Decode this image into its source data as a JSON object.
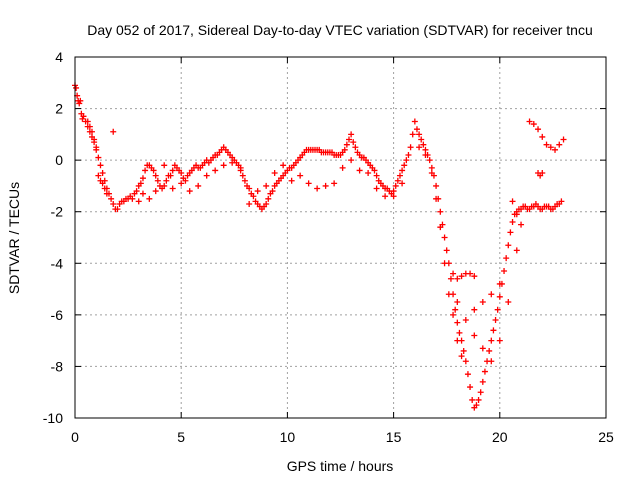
{
  "chart_data": {
    "type": "scatter",
    "title": "Day 052 of 2017, Sidereal Day-to-day VTEC variation (SDTVAR) for receiver tncu",
    "xlabel": "GPS time / hours",
    "ylabel": "SDTVAR / TECUs",
    "xlim": [
      0,
      25
    ],
    "ylim": [
      -10,
      4
    ],
    "xticks": [
      "0",
      "5",
      "10",
      "15",
      "20",
      "25"
    ],
    "yticks": [
      "-10",
      "-8",
      "-6",
      "-4",
      "-2",
      "0",
      "2",
      "4"
    ],
    "grid": true,
    "marker": "+",
    "color": "#ff0000",
    "series": [
      {
        "points": [
          [
            0.0,
            2.9
          ],
          [
            0.05,
            2.8
          ],
          [
            0.1,
            2.5
          ],
          [
            0.15,
            2.3
          ],
          [
            0.2,
            2.2
          ],
          [
            0.25,
            2.3
          ],
          [
            0.3,
            1.8
          ],
          [
            0.35,
            1.6
          ],
          [
            0.4,
            1.7
          ],
          [
            0.5,
            1.5
          ],
          [
            0.6,
            1.3
          ],
          [
            0.7,
            1.1
          ],
          [
            0.8,
            0.9
          ],
          [
            0.9,
            0.7
          ],
          [
            1.0,
            0.4
          ],
          [
            1.1,
            0.1
          ],
          [
            1.2,
            -0.2
          ],
          [
            1.3,
            -0.5
          ],
          [
            1.4,
            -0.8
          ],
          [
            1.5,
            -1.1
          ],
          [
            1.6,
            -1.3
          ],
          [
            1.7,
            -1.5
          ],
          [
            1.8,
            -1.7
          ],
          [
            1.9,
            -1.9
          ],
          [
            2.0,
            -1.9
          ],
          [
            2.1,
            -1.7
          ],
          [
            2.2,
            -1.6
          ],
          [
            2.3,
            -1.6
          ],
          [
            2.4,
            -1.5
          ],
          [
            2.5,
            -1.5
          ],
          [
            2.6,
            -1.4
          ],
          [
            2.7,
            -1.5
          ],
          [
            2.8,
            -1.3
          ],
          [
            2.9,
            -1.2
          ],
          [
            3.0,
            -1.0
          ],
          [
            3.1,
            -0.9
          ],
          [
            3.2,
            -0.7
          ],
          [
            3.3,
            -0.4
          ],
          [
            3.4,
            -0.2
          ],
          [
            3.5,
            -0.2
          ],
          [
            3.6,
            -0.3
          ],
          [
            3.7,
            -0.4
          ],
          [
            3.8,
            -0.6
          ],
          [
            3.9,
            -0.8
          ],
          [
            4.0,
            -1.0
          ],
          [
            4.1,
            -1.1
          ],
          [
            4.2,
            -1.0
          ],
          [
            4.3,
            -0.8
          ],
          [
            4.4,
            -0.6
          ],
          [
            4.5,
            -0.6
          ],
          [
            4.6,
            -0.4
          ],
          [
            4.7,
            -0.2
          ],
          [
            4.8,
            -0.3
          ],
          [
            4.9,
            -0.4
          ],
          [
            5.0,
            -0.5
          ],
          [
            5.1,
            -0.7
          ],
          [
            5.2,
            -0.8
          ],
          [
            5.3,
            -0.6
          ],
          [
            5.4,
            -0.5
          ],
          [
            5.5,
            -0.4
          ],
          [
            5.6,
            -0.3
          ],
          [
            5.7,
            -0.2
          ],
          [
            5.8,
            -0.3
          ],
          [
            5.9,
            -0.3
          ],
          [
            6.0,
            -0.2
          ],
          [
            6.1,
            -0.1
          ],
          [
            6.2,
            0.0
          ],
          [
            6.3,
            -0.1
          ],
          [
            6.4,
            0.0
          ],
          [
            6.5,
            0.1
          ],
          [
            6.6,
            0.2
          ],
          [
            6.7,
            0.2
          ],
          [
            6.8,
            0.3
          ],
          [
            6.9,
            0.4
          ],
          [
            7.0,
            0.5
          ],
          [
            7.1,
            0.4
          ],
          [
            7.2,
            0.3
          ],
          [
            7.3,
            0.2
          ],
          [
            7.4,
            0.1
          ],
          [
            7.5,
            0.0
          ],
          [
            7.6,
            -0.1
          ],
          [
            7.7,
            -0.2
          ],
          [
            7.8,
            -0.4
          ],
          [
            7.9,
            -0.6
          ],
          [
            8.0,
            -0.8
          ],
          [
            8.1,
            -1.0
          ],
          [
            8.2,
            -1.1
          ],
          [
            8.3,
            -1.3
          ],
          [
            8.4,
            -1.4
          ],
          [
            8.5,
            -1.6
          ],
          [
            8.6,
            -1.7
          ],
          [
            8.7,
            -1.8
          ],
          [
            8.8,
            -1.9
          ],
          [
            8.9,
            -1.8
          ],
          [
            9.0,
            -1.7
          ],
          [
            9.1,
            -1.5
          ],
          [
            9.2,
            -1.3
          ],
          [
            9.3,
            -1.2
          ],
          [
            9.4,
            -1.0
          ],
          [
            9.5,
            -0.9
          ],
          [
            9.6,
            -0.8
          ],
          [
            9.7,
            -0.7
          ],
          [
            9.8,
            -0.6
          ],
          [
            9.9,
            -0.5
          ],
          [
            10.0,
            -0.4
          ],
          [
            10.1,
            -0.3
          ],
          [
            10.2,
            -0.3
          ],
          [
            10.3,
            -0.2
          ],
          [
            10.4,
            -0.1
          ],
          [
            10.5,
            0.0
          ],
          [
            10.6,
            0.1
          ],
          [
            10.7,
            0.2
          ],
          [
            10.8,
            0.3
          ],
          [
            10.9,
            0.4
          ],
          [
            11.0,
            0.4
          ],
          [
            11.1,
            0.4
          ],
          [
            11.2,
            0.4
          ],
          [
            11.3,
            0.4
          ],
          [
            11.4,
            0.4
          ],
          [
            11.5,
            0.4
          ],
          [
            11.6,
            0.3
          ],
          [
            11.7,
            0.3
          ],
          [
            11.8,
            0.3
          ],
          [
            11.9,
            0.3
          ],
          [
            12.0,
            0.3
          ],
          [
            12.1,
            0.3
          ],
          [
            12.2,
            0.2
          ],
          [
            12.3,
            0.2
          ],
          [
            12.4,
            0.2
          ],
          [
            12.5,
            0.2
          ],
          [
            12.6,
            0.3
          ],
          [
            12.7,
            0.4
          ],
          [
            12.8,
            0.6
          ],
          [
            12.9,
            0.8
          ],
          [
            13.0,
            1.0
          ],
          [
            13.1,
            0.7
          ],
          [
            13.2,
            0.5
          ],
          [
            13.3,
            0.3
          ],
          [
            13.4,
            0.2
          ],
          [
            13.5,
            0.1
          ],
          [
            13.6,
            0.1
          ],
          [
            13.7,
            0.0
          ],
          [
            13.8,
            -0.1
          ],
          [
            13.9,
            -0.2
          ],
          [
            14.0,
            -0.3
          ],
          [
            14.1,
            -0.4
          ],
          [
            14.2,
            -0.6
          ],
          [
            14.3,
            -0.8
          ],
          [
            14.4,
            -0.9
          ],
          [
            14.5,
            -1.0
          ],
          [
            14.6,
            -1.1
          ],
          [
            14.7,
            -1.1
          ],
          [
            14.8,
            -1.2
          ],
          [
            14.9,
            -1.3
          ],
          [
            15.0,
            -1.2
          ],
          [
            15.1,
            -1.0
          ],
          [
            15.2,
            -0.8
          ],
          [
            15.3,
            -0.6
          ],
          [
            15.4,
            -0.4
          ],
          [
            15.5,
            -0.2
          ],
          [
            15.6,
            0.0
          ],
          [
            15.7,
            0.2
          ],
          [
            15.8,
            0.5
          ],
          [
            15.9,
            1.0
          ],
          [
            16.0,
            1.5
          ],
          [
            16.1,
            1.2
          ],
          [
            16.2,
            1.0
          ],
          [
            16.3,
            0.8
          ],
          [
            16.4,
            0.6
          ],
          [
            16.5,
            0.4
          ],
          [
            16.6,
            0.2
          ],
          [
            16.7,
            0.0
          ],
          [
            16.8,
            -0.3
          ],
          [
            16.9,
            -0.6
          ],
          [
            17.0,
            -1.0
          ],
          [
            17.1,
            -1.5
          ],
          [
            17.2,
            -2.0
          ],
          [
            17.3,
            -2.5
          ],
          [
            17.4,
            -3.0
          ],
          [
            17.5,
            -3.5
          ],
          [
            17.6,
            -4.0
          ],
          [
            17.7,
            -4.6
          ],
          [
            17.8,
            -5.2
          ],
          [
            17.9,
            -5.8
          ],
          [
            18.0,
            -6.3
          ],
          [
            18.1,
            -6.7
          ],
          [
            18.2,
            -7.0
          ],
          [
            18.3,
            -7.4
          ],
          [
            18.4,
            -7.8
          ],
          [
            18.5,
            -8.3
          ],
          [
            18.6,
            -8.8
          ],
          [
            18.7,
            -9.3
          ],
          [
            18.8,
            -9.6
          ],
          [
            18.9,
            -9.5
          ],
          [
            19.0,
            -9.3
          ],
          [
            19.1,
            -9.0
          ],
          [
            19.2,
            -8.6
          ],
          [
            19.3,
            -8.2
          ],
          [
            19.4,
            -7.8
          ],
          [
            19.5,
            -7.4
          ],
          [
            19.6,
            -7.0
          ],
          [
            19.7,
            -6.6
          ],
          [
            19.8,
            -6.2
          ],
          [
            19.9,
            -5.8
          ],
          [
            20.0,
            -5.3
          ],
          [
            20.1,
            -4.8
          ],
          [
            20.2,
            -4.3
          ],
          [
            20.3,
            -3.8
          ],
          [
            20.4,
            -3.3
          ],
          [
            20.5,
            -2.8
          ],
          [
            20.6,
            -2.4
          ],
          [
            20.7,
            -2.1
          ],
          [
            20.8,
            -2.0
          ],
          [
            20.9,
            -1.9
          ],
          [
            21.0,
            -1.9
          ],
          [
            21.1,
            -1.8
          ],
          [
            21.2,
            -1.8
          ],
          [
            21.3,
            -1.9
          ],
          [
            21.4,
            -1.9
          ],
          [
            21.5,
            -1.8
          ],
          [
            21.6,
            -1.8
          ],
          [
            21.7,
            -1.7
          ],
          [
            21.8,
            -1.8
          ],
          [
            21.9,
            -1.9
          ],
          [
            22.0,
            -1.9
          ],
          [
            22.1,
            -1.8
          ],
          [
            22.2,
            -1.8
          ],
          [
            22.3,
            -1.8
          ],
          [
            22.4,
            -1.9
          ],
          [
            22.5,
            -1.9
          ],
          [
            22.6,
            -1.8
          ],
          [
            22.7,
            -1.7
          ],
          [
            22.8,
            -1.7
          ],
          [
            22.9,
            -1.6
          ],
          [
            0.6,
            1.5
          ],
          [
            0.7,
            1.3
          ],
          [
            0.8,
            1.1
          ],
          [
            0.9,
            0.8
          ],
          [
            1.0,
            0.5
          ],
          [
            1.1,
            -0.6
          ],
          [
            1.2,
            -0.8
          ],
          [
            1.3,
            -0.9
          ],
          [
            1.4,
            -1.1
          ],
          [
            1.5,
            -1.3
          ],
          [
            1.8,
            1.1
          ],
          [
            3.0,
            -1.6
          ],
          [
            3.2,
            -1.3
          ],
          [
            3.5,
            -1.5
          ],
          [
            3.8,
            -1.2
          ],
          [
            4.2,
            -0.2
          ],
          [
            4.6,
            -1.1
          ],
          [
            5.0,
            -0.9
          ],
          [
            5.4,
            -1.2
          ],
          [
            5.8,
            -1.0
          ],
          [
            6.2,
            -0.6
          ],
          [
            6.6,
            -0.4
          ],
          [
            7.0,
            -0.2
          ],
          [
            7.4,
            -0.1
          ],
          [
            7.8,
            -0.3
          ],
          [
            8.2,
            -1.7
          ],
          [
            8.6,
            -1.2
          ],
          [
            9.0,
            -1.0
          ],
          [
            9.4,
            -0.5
          ],
          [
            9.8,
            -0.2
          ],
          [
            10.2,
            -0.8
          ],
          [
            10.6,
            -0.6
          ],
          [
            11.0,
            -0.9
          ],
          [
            11.4,
            -1.1
          ],
          [
            11.8,
            -1.0
          ],
          [
            12.2,
            -0.9
          ],
          [
            12.6,
            -0.3
          ],
          [
            13.0,
            0.0
          ],
          [
            13.4,
            -0.4
          ],
          [
            13.8,
            -0.5
          ],
          [
            14.2,
            -1.1
          ],
          [
            14.6,
            -1.4
          ],
          [
            15.0,
            -1.4
          ],
          [
            15.4,
            -0.9
          ],
          [
            16.2,
            0.5
          ],
          [
            16.5,
            0.2
          ],
          [
            16.8,
            -0.5
          ],
          [
            17.0,
            -1.5
          ],
          [
            17.2,
            -2.6
          ],
          [
            17.4,
            -4.0
          ],
          [
            17.6,
            -5.2
          ],
          [
            17.8,
            -6.0
          ],
          [
            18.0,
            -7.0
          ],
          [
            18.2,
            -7.6
          ],
          [
            17.8,
            -4.4
          ],
          [
            18.0,
            -4.6
          ],
          [
            18.2,
            -4.5
          ],
          [
            18.4,
            -4.4
          ],
          [
            18.6,
            -4.4
          ],
          [
            18.8,
            -4.5
          ],
          [
            18.0,
            -5.5
          ],
          [
            18.4,
            -6.2
          ],
          [
            18.8,
            -6.8
          ],
          [
            19.2,
            -7.3
          ],
          [
            19.6,
            -7.8
          ],
          [
            20.0,
            -7.0
          ],
          [
            20.4,
            -5.5
          ],
          [
            20.8,
            -3.5
          ],
          [
            21.0,
            -2.5
          ],
          [
            20.8,
            -2.1
          ],
          [
            20.6,
            -1.6
          ],
          [
            18.8,
            -5.8
          ],
          [
            19.2,
            -5.5
          ],
          [
            19.6,
            -5.2
          ],
          [
            20.0,
            -4.8
          ],
          [
            21.4,
            1.5
          ],
          [
            21.6,
            1.4
          ],
          [
            21.8,
            1.2
          ],
          [
            22.0,
            0.9
          ],
          [
            22.2,
            0.6
          ],
          [
            22.4,
            0.5
          ],
          [
            22.6,
            0.4
          ],
          [
            22.8,
            0.6
          ],
          [
            23.0,
            0.8
          ],
          [
            22.0,
            -0.5
          ],
          [
            21.9,
            -0.6
          ],
          [
            21.8,
            -0.5
          ]
        ]
      }
    ]
  }
}
